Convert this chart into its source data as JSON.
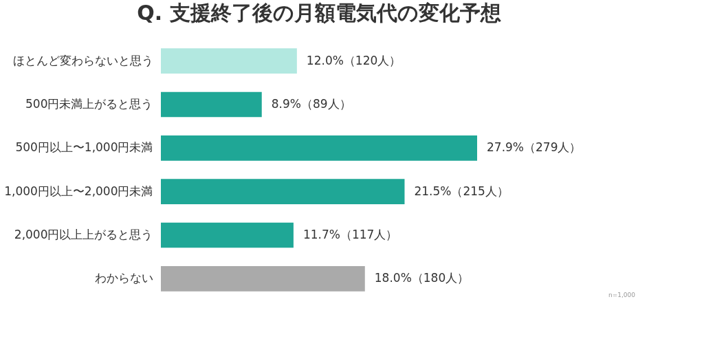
{
  "chart_data": {
    "type": "bar",
    "orientation": "horizontal",
    "title": "Q. 支援終了後の月額電気代の変化予想",
    "categories": [
      "ほとんど変わらないと思う",
      "500円未満上がると思う",
      "500円以上〜1,000円未満",
      "1,000円以上〜2,000円未満",
      "2,000円以上上がると思う",
      "わからない"
    ],
    "values": [
      12.0,
      8.9,
      27.9,
      21.5,
      11.7,
      18.0
    ],
    "colors": [
      "#b2e8e0",
      "#1fa796",
      "#1fa796",
      "#1fa796",
      "#1fa796",
      "#aaaaaa"
    ],
    "value_labels": [
      "12.0%（120人）",
      "8.9%（89人）",
      "27.9%（279人）",
      "21.5%（215人）",
      "11.7%（117人）",
      "18.0%（180人）"
    ],
    "annotations": [
      "n=1,000"
    ],
    "grid": false
  }
}
